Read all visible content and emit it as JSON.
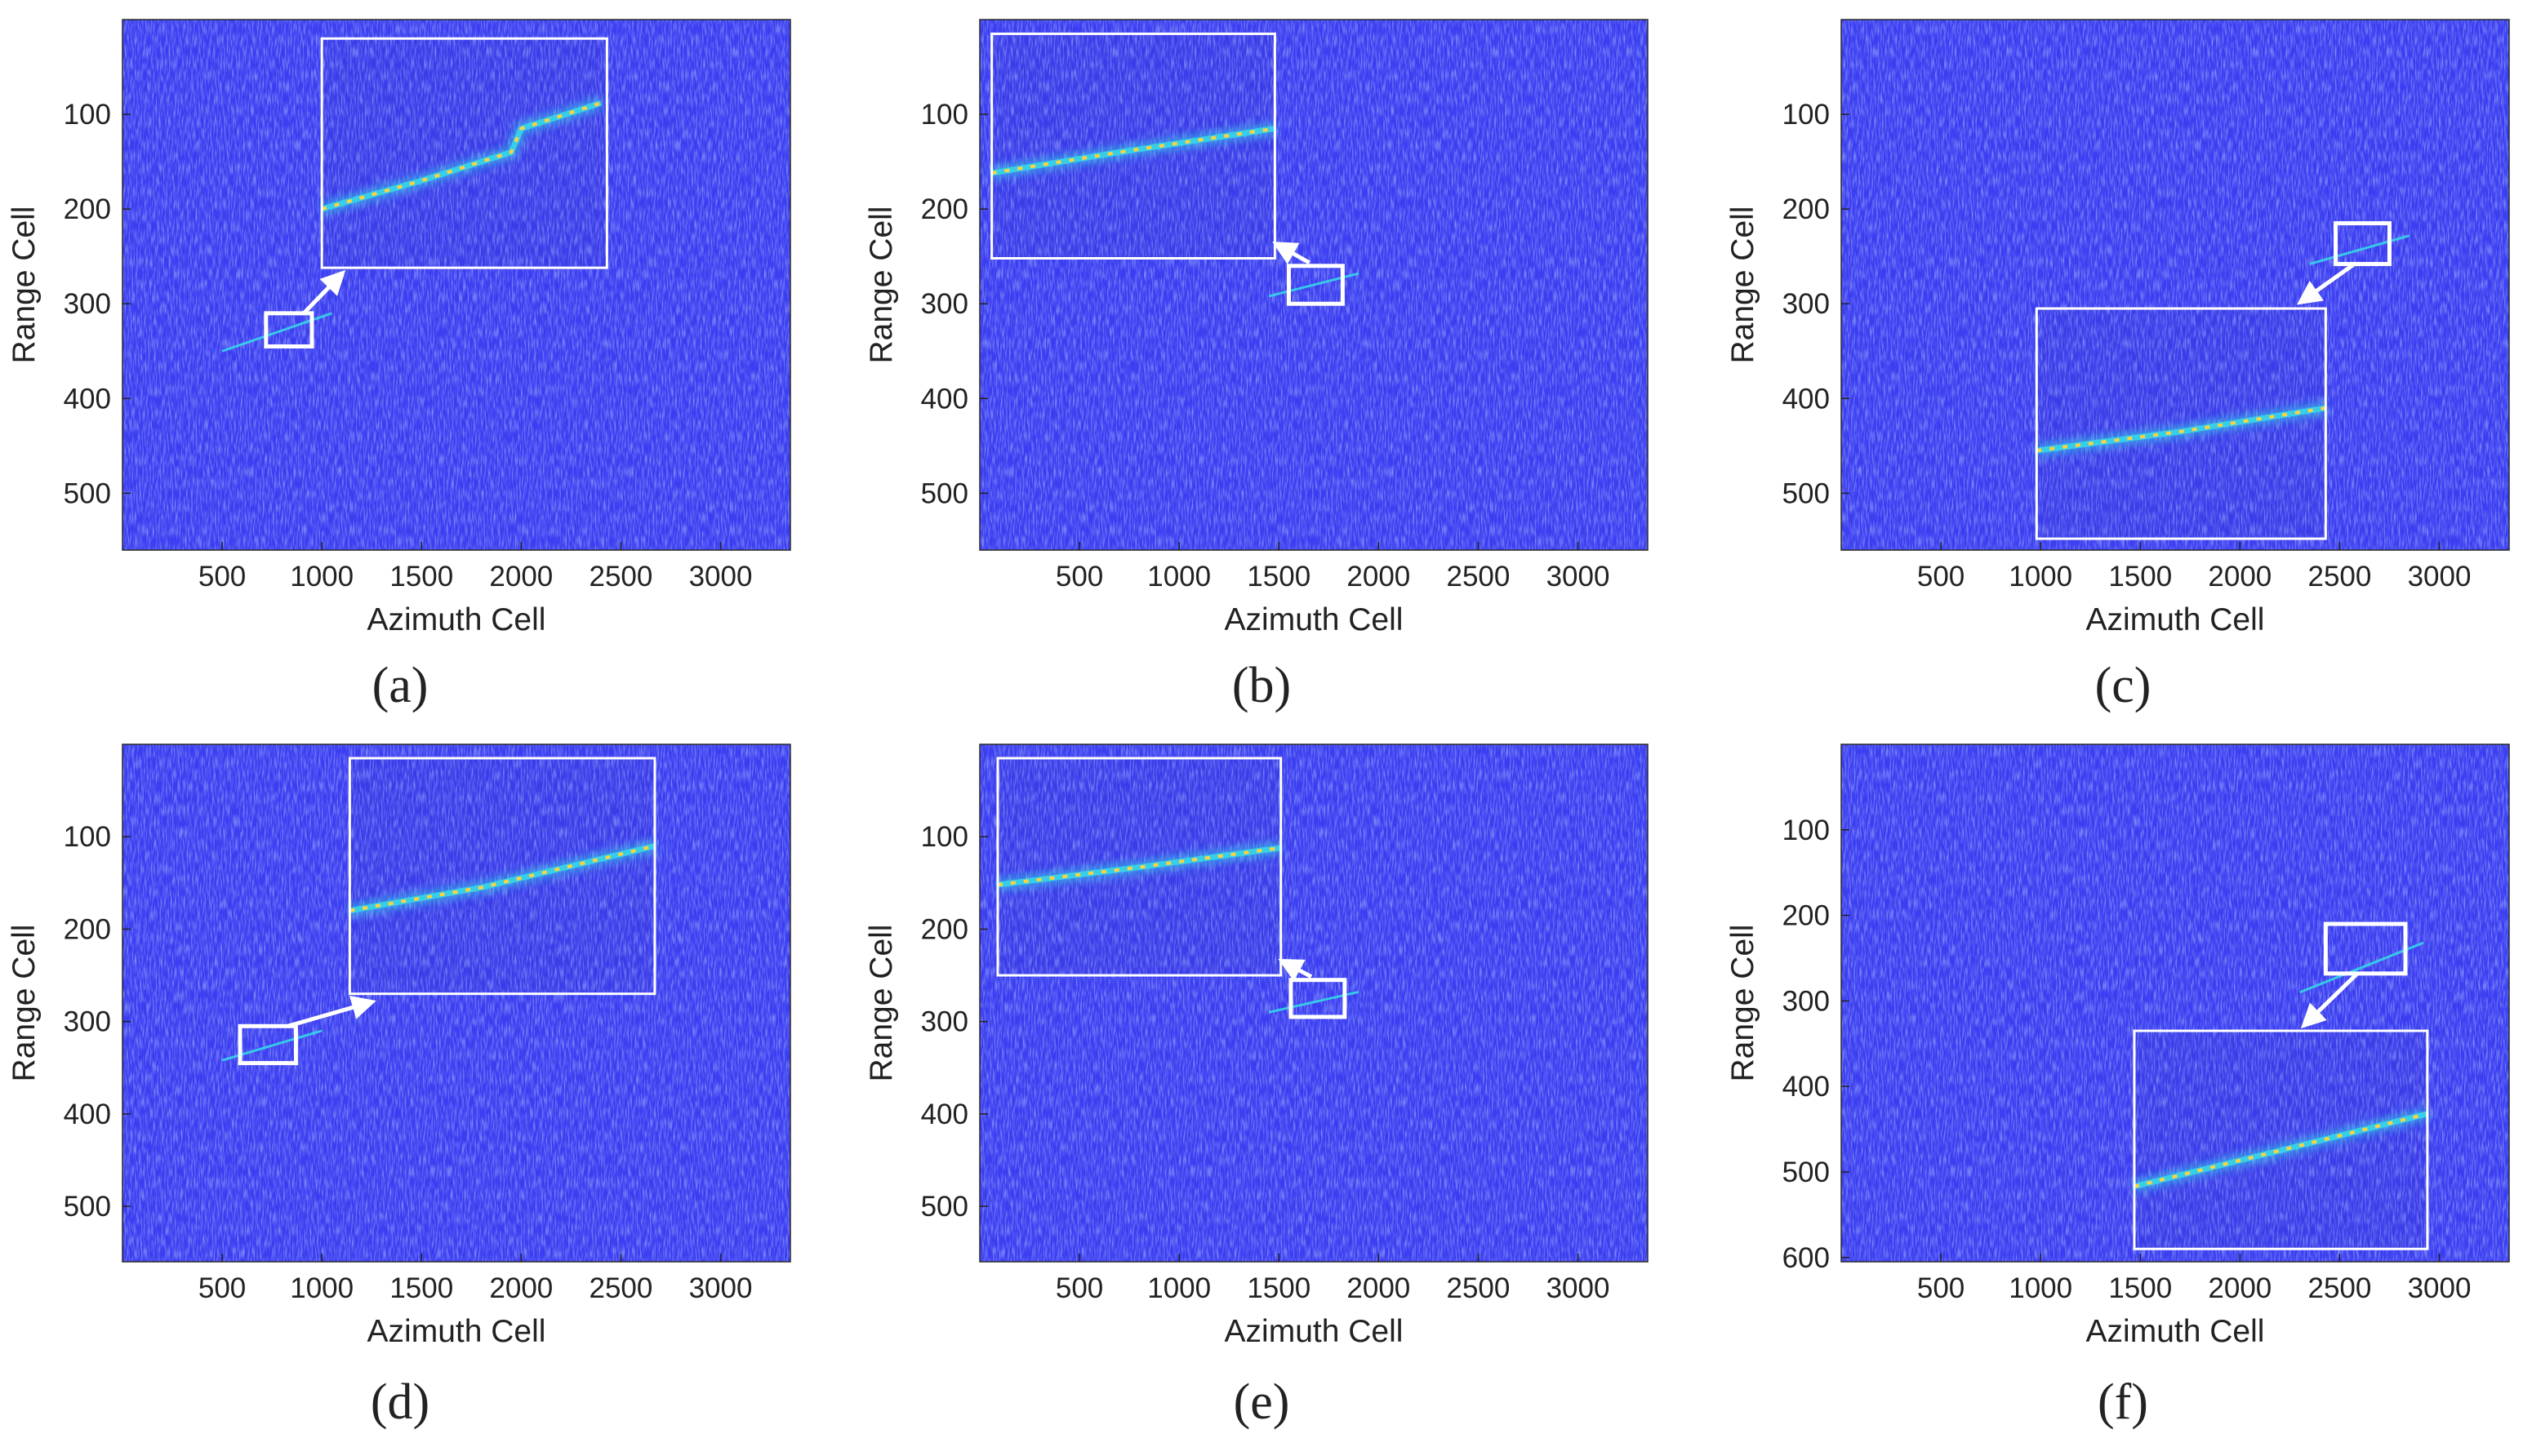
{
  "colors": {
    "background": "#3b3df0",
    "noise_light": "#4f6cf5",
    "noise_dark": "#2c2fd6",
    "trace_cyan": "#36d6e8",
    "trace_yellow": "#ffd23f",
    "overlay": "#ffffff",
    "text": "#222222"
  },
  "chart_data": [
    {
      "type": "heatmap",
      "caption": "(a)",
      "xlabel": "Azimuth Cell",
      "ylabel": "Range Cell",
      "xlim": [
        0,
        3350
      ],
      "ylim": [
        0,
        560
      ],
      "y_reversed": true,
      "xticks": [
        "500",
        "1000",
        "1500",
        "2000",
        "2500",
        "3000"
      ],
      "yticks": [
        "100",
        "200",
        "300",
        "400",
        "500"
      ],
      "target_trace": [
        [
          500,
          350
        ],
        [
          1050,
          310
        ]
      ],
      "selection_box": {
        "x": [
          720,
          950
        ],
        "y": [
          310,
          345
        ]
      },
      "inset": {
        "x": [
          1000,
          2430
        ],
        "y": [
          20,
          262
        ],
        "trace": [
          [
            1000,
            200
          ],
          [
            1500,
            170
          ],
          [
            1950,
            140
          ],
          [
            2000,
            115
          ],
          [
            2150,
            105
          ],
          [
            2400,
            88
          ]
        ]
      }
    },
    {
      "type": "heatmap",
      "caption": "(b)",
      "xlabel": "Azimuth Cell",
      "ylabel": "Range Cell",
      "xlim": [
        0,
        3350
      ],
      "ylim": [
        0,
        560
      ],
      "y_reversed": true,
      "xticks": [
        "500",
        "1000",
        "1500",
        "2000",
        "2500",
        "3000"
      ],
      "yticks": [
        "100",
        "200",
        "300",
        "400",
        "500"
      ],
      "target_trace": [
        [
          1450,
          292
        ],
        [
          1900,
          268
        ]
      ],
      "selection_box": {
        "x": [
          1550,
          1820
        ],
        "y": [
          260,
          300
        ]
      },
      "inset": {
        "x": [
          60,
          1480
        ],
        "y": [
          15,
          252
        ],
        "trace": [
          [
            60,
            162
          ],
          [
            700,
            140
          ],
          [
            1480,
            115
          ]
        ]
      }
    },
    {
      "type": "heatmap",
      "caption": "(c)",
      "xlabel": "Azimuth Cell",
      "ylabel": "Range Cell",
      "xlim": [
        0,
        3350
      ],
      "ylim": [
        0,
        560
      ],
      "y_reversed": true,
      "xticks": [
        "500",
        "1000",
        "1500",
        "2000",
        "2500",
        "3000"
      ],
      "yticks": [
        "100",
        "200",
        "300",
        "400",
        "500"
      ],
      "target_trace": [
        [
          2350,
          258
        ],
        [
          2850,
          228
        ]
      ],
      "selection_box": {
        "x": [
          2480,
          2750
        ],
        "y": [
          215,
          258
        ]
      },
      "inset": {
        "x": [
          980,
          2430
        ],
        "y": [
          305,
          548
        ],
        "trace": [
          [
            980,
            455
          ],
          [
            1700,
            435
          ],
          [
            2430,
            410
          ]
        ]
      }
    },
    {
      "type": "heatmap",
      "caption": "(d)",
      "xlabel": "Azimuth Cell",
      "ylabel": "Range Cell",
      "xlim": [
        0,
        3350
      ],
      "ylim": [
        0,
        560
      ],
      "y_reversed": true,
      "xticks": [
        "500",
        "1000",
        "1500",
        "2000",
        "2500",
        "3000"
      ],
      "yticks": [
        "100",
        "200",
        "300",
        "400",
        "500"
      ],
      "target_trace": [
        [
          500,
          342
        ],
        [
          1000,
          310
        ]
      ],
      "selection_box": {
        "x": [
          590,
          870
        ],
        "y": [
          305,
          345
        ]
      },
      "inset": {
        "x": [
          1140,
          2670
        ],
        "y": [
          15,
          270
        ],
        "trace": [
          [
            1140,
            180
          ],
          [
            1800,
            155
          ],
          [
            2670,
            110
          ]
        ]
      }
    },
    {
      "type": "heatmap",
      "caption": "(e)",
      "xlabel": "Azimuth Cell",
      "ylabel": "Range Cell",
      "xlim": [
        0,
        3350
      ],
      "ylim": [
        0,
        560
      ],
      "y_reversed": true,
      "xticks": [
        "500",
        "1000",
        "1500",
        "2000",
        "2500",
        "3000"
      ],
      "yticks": [
        "100",
        "200",
        "300",
        "400",
        "500"
      ],
      "target_trace": [
        [
          1450,
          290
        ],
        [
          1900,
          268
        ]
      ],
      "selection_box": {
        "x": [
          1560,
          1830
        ],
        "y": [
          255,
          295
        ]
      },
      "inset": {
        "x": [
          90,
          1510
        ],
        "y": [
          15,
          250
        ],
        "trace": [
          [
            90,
            152
          ],
          [
            800,
            133
          ],
          [
            1510,
            112
          ]
        ]
      }
    },
    {
      "type": "heatmap",
      "caption": "(f)",
      "xlabel": "Azimuth Cell",
      "ylabel": "Range Cell",
      "xlim": [
        0,
        3350
      ],
      "ylim": [
        0,
        605
      ],
      "y_reversed": true,
      "xticks": [
        "500",
        "1000",
        "1500",
        "2000",
        "2500",
        "3000"
      ],
      "yticks": [
        "100",
        "200",
        "300",
        "400",
        "500",
        "600"
      ],
      "target_trace": [
        [
          2300,
          290
        ],
        [
          2920,
          232
        ]
      ],
      "selection_box": {
        "x": [
          2430,
          2830
        ],
        "y": [
          210,
          268
        ]
      },
      "inset": {
        "x": [
          1470,
          2940
        ],
        "y": [
          335,
          590
        ],
        "trace": [
          [
            1470,
            517
          ],
          [
            2200,
            475
          ],
          [
            2940,
            432
          ]
        ]
      }
    }
  ]
}
